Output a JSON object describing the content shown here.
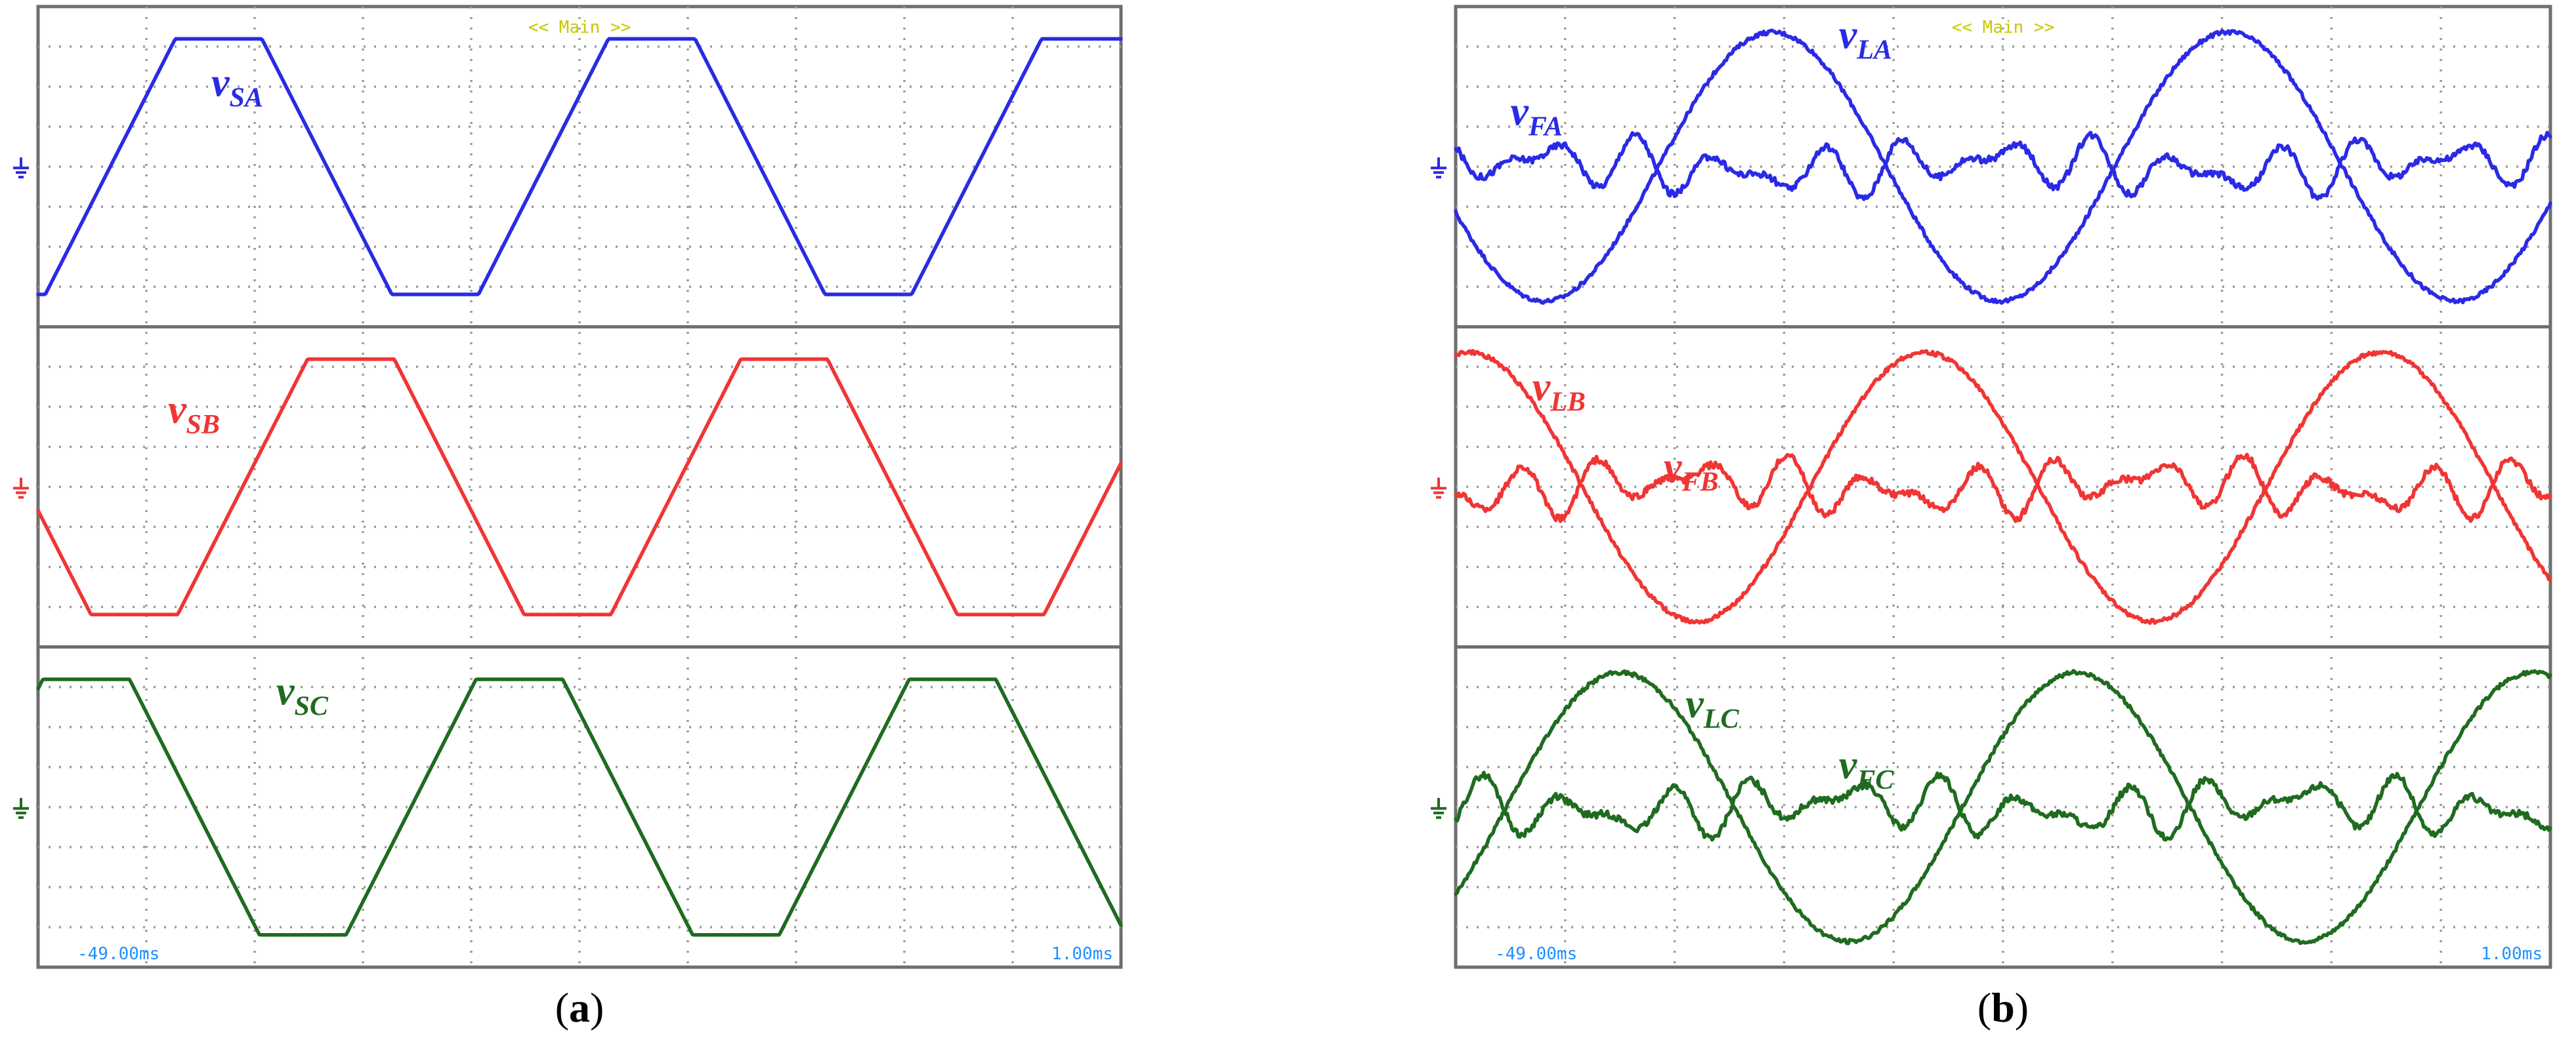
{
  "chart_data": [
    {
      "type": "line",
      "panel_caption": {
        "open": "(",
        "letter": "a",
        "close": ")"
      },
      "top_label": "<< Main >>",
      "time_start_label": "-49.00ms",
      "time_end_label": "1.00ms",
      "grid": true,
      "x_divisions": 10,
      "strips": [
        {
          "color": "#2a2ae6",
          "series": [
            {
              "label_main": "v",
              "label_sub": "SA",
              "shape": "trapezoid",
              "amplitude": 0.95,
              "cycles": 2.5,
              "phase_deg": 210,
              "flat_fraction": 0.2,
              "ripple": 0
            }
          ]
        },
        {
          "color": "#f03535",
          "series": [
            {
              "label_main": "v",
              "label_sub": "SB",
              "shape": "trapezoid",
              "amplitude": 0.95,
              "cycles": 2.5,
              "phase_deg": 100,
              "flat_fraction": 0.2,
              "ripple": 0
            }
          ]
        },
        {
          "color": "#1f6b1f",
          "series": [
            {
              "label_main": "v",
              "label_sub": "SC",
              "shape": "trapezoid",
              "amplitude": 0.95,
              "cycles": 2.5,
              "phase_deg": 320,
              "flat_fraction": 0.2,
              "ripple": 0
            }
          ]
        }
      ]
    },
    {
      "type": "line",
      "panel_caption": {
        "open": "(",
        "letter": "b",
        "close": ")"
      },
      "top_label": "<< Main >>",
      "time_start_label": "-49.00ms",
      "time_end_label": "1.00ms",
      "grid": true,
      "x_divisions": 10,
      "strips": [
        {
          "color": "#2a2ae6",
          "series": [
            {
              "label_main": "v",
              "label_sub": "LA",
              "shape": "sine",
              "amplitude": 1.0,
              "cycles": 2.4,
              "phase_deg": 200,
              "ripple": 0.03
            },
            {
              "label_main": "v",
              "label_sub": "FA",
              "shape": "harmonic",
              "amplitude": 0.22,
              "cycles": 2.4,
              "phase_deg": 20,
              "ripple": 0.05
            }
          ]
        },
        {
          "color": "#f03535",
          "series": [
            {
              "label_main": "v",
              "label_sub": "LB",
              "shape": "sine",
              "amplitude": 1.0,
              "cycles": 2.4,
              "phase_deg": 80,
              "ripple": 0.03
            },
            {
              "label_main": "v",
              "label_sub": "FB",
              "shape": "harmonic",
              "amplitude": 0.22,
              "cycles": 2.4,
              "phase_deg": 260,
              "ripple": 0.05
            }
          ]
        },
        {
          "color": "#1f6b1f",
          "series": [
            {
              "label_main": "v",
              "label_sub": "LC",
              "shape": "sine",
              "amplitude": 1.0,
              "cycles": 2.4,
              "phase_deg": 320,
              "ripple": 0.03
            },
            {
              "label_main": "v",
              "label_sub": "FC",
              "shape": "harmonic",
              "amplitude": 0.22,
              "cycles": 2.4,
              "phase_deg": 140,
              "ripple": 0.05
            }
          ]
        }
      ]
    }
  ]
}
